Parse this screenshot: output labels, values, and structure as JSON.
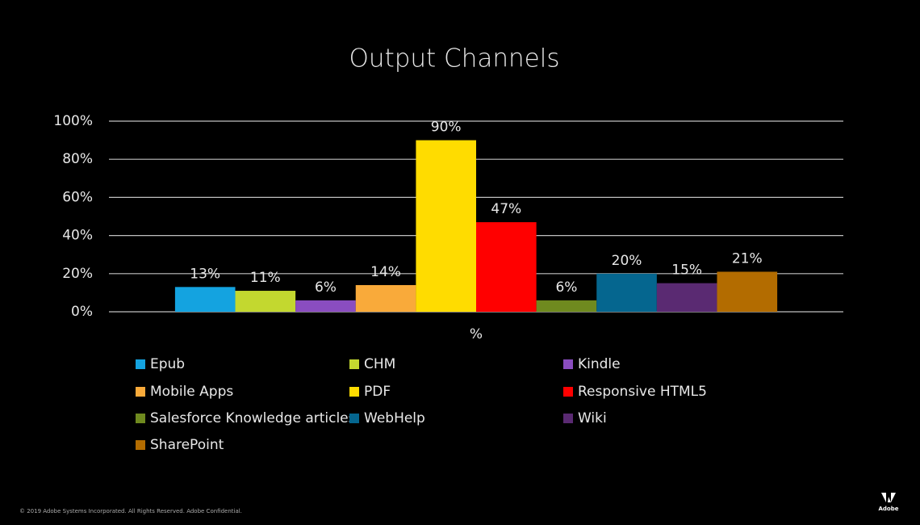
{
  "chart_data": {
    "type": "bar",
    "title": "Output Channels",
    "categories": [
      "%"
    ],
    "series": [
      {
        "name": "Epub",
        "color": "#14a3e0",
        "values": [
          13
        ],
        "value_labels": [
          "13%"
        ]
      },
      {
        "name": "CHM",
        "color": "#c3d82f",
        "values": [
          11
        ],
        "value_labels": [
          "11%"
        ]
      },
      {
        "name": "Kindle",
        "color": "#8a4dc0",
        "values": [
          6
        ],
        "value_labels": [
          "6%"
        ]
      },
      {
        "name": "Mobile Apps",
        "color": "#f9aa3a",
        "values": [
          14
        ],
        "value_labels": [
          "14%"
        ]
      },
      {
        "name": "PDF",
        "color": "#ffdc00",
        "values": [
          90
        ],
        "value_labels": [
          "90%"
        ]
      },
      {
        "name": "Responsive HTML5",
        "color": "#ff0000",
        "values": [
          47
        ],
        "value_labels": [
          "47%"
        ]
      },
      {
        "name": "Salesforce Knowledge articles",
        "color": "#6f8a1f",
        "values": [
          6
        ],
        "value_labels": [
          "6%"
        ]
      },
      {
        "name": "WebHelp",
        "color": "#05668f",
        "values": [
          20
        ],
        "value_labels": [
          "20%"
        ]
      },
      {
        "name": "Wiki",
        "color": "#5a2a72",
        "values": [
          15
        ],
        "value_labels": [
          "15%"
        ]
      },
      {
        "name": "SharePoint",
        "color": "#b36c00",
        "values": [
          21
        ],
        "value_labels": [
          "21%"
        ]
      }
    ],
    "ylim": [
      0,
      100
    ],
    "yticks": [
      {
        "value": 0,
        "label": "0%"
      },
      {
        "value": 20,
        "label": "20%"
      },
      {
        "value": 40,
        "label": "40%"
      },
      {
        "value": 60,
        "label": "60%"
      },
      {
        "value": 80,
        "label": "80%"
      },
      {
        "value": 100,
        "label": "100%"
      }
    ],
    "grid": true,
    "legend": "bottom"
  },
  "footer": {
    "copyright": "© 2019 Adobe Systems Incorporated.  All Rights Reserved.  Adobe Confidential.",
    "logo": "Adobe"
  }
}
